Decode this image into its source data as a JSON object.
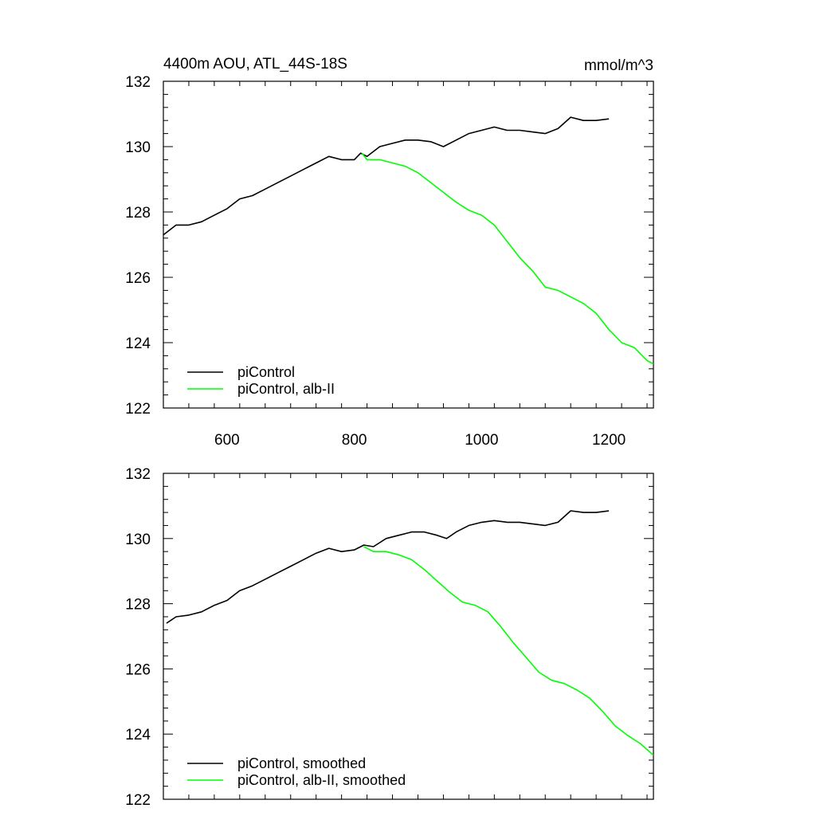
{
  "chart_data": [
    {
      "type": "line",
      "title": "4400m AOU, ATL_44S-18S",
      "units": "mmol/m^3",
      "xlabel": "",
      "ylabel": "",
      "xlim": [
        500,
        1270
      ],
      "ylim": [
        122,
        132
      ],
      "xticks": [
        600,
        800,
        1000,
        1200
      ],
      "xtick_labels": [
        "600",
        "800",
        "1000",
        "1200"
      ],
      "yticks": [
        122,
        124,
        126,
        128,
        130,
        132
      ],
      "ytick_labels": [
        "122",
        "124",
        "126",
        "128",
        "130",
        "132"
      ],
      "legend": "bottom-left",
      "grid": false,
      "series": [
        {
          "name": "piControl",
          "color": "#000000",
          "x": [
            500,
            520,
            540,
            560,
            580,
            600,
            620,
            640,
            660,
            680,
            700,
            720,
            740,
            760,
            780,
            800,
            810,
            820,
            840,
            860,
            880,
            900,
            920,
            940,
            960,
            980,
            1000,
            1020,
            1040,
            1060,
            1080,
            1100,
            1120,
            1140,
            1160,
            1180,
            1200
          ],
          "y": [
            127.3,
            127.6,
            127.6,
            127.7,
            127.9,
            128.1,
            128.4,
            128.5,
            128.7,
            128.9,
            129.1,
            129.3,
            129.5,
            129.7,
            129.6,
            129.6,
            129.8,
            129.7,
            130.0,
            130.1,
            130.2,
            130.2,
            130.15,
            130.0,
            130.2,
            130.4,
            130.5,
            130.6,
            130.5,
            130.5,
            130.45,
            130.4,
            130.55,
            130.9,
            130.8,
            130.8,
            130.85
          ]
        },
        {
          "name": "piControl, alb-II",
          "color": "#00ff00",
          "x": [
            812,
            820,
            840,
            860,
            880,
            900,
            920,
            940,
            960,
            980,
            1000,
            1020,
            1040,
            1060,
            1080,
            1100,
            1120,
            1140,
            1160,
            1180,
            1200,
            1220,
            1240,
            1260,
            1270
          ],
          "y": [
            129.8,
            129.6,
            129.6,
            129.5,
            129.4,
            129.2,
            128.9,
            128.6,
            128.3,
            128.05,
            127.9,
            127.6,
            127.1,
            126.6,
            126.2,
            125.7,
            125.6,
            125.4,
            125.2,
            124.9,
            124.4,
            124.0,
            123.85,
            123.45,
            123.35
          ]
        }
      ]
    },
    {
      "type": "line",
      "title": "",
      "units": "",
      "xlabel": "",
      "ylabel": "",
      "xlim": [
        500,
        1270
      ],
      "ylim": [
        122,
        132
      ],
      "xticks": [
        600,
        800,
        1000,
        1200
      ],
      "xtick_labels": [],
      "yticks": [
        122,
        124,
        126,
        128,
        130,
        132
      ],
      "ytick_labels": [
        "122",
        "124",
        "126",
        "128",
        "130",
        "132"
      ],
      "legend": "bottom-left",
      "grid": false,
      "series": [
        {
          "name": "piControl, smoothed",
          "color": "#000000",
          "x": [
            505,
            520,
            540,
            560,
            580,
            600,
            620,
            640,
            660,
            680,
            700,
            720,
            740,
            760,
            780,
            800,
            815,
            830,
            850,
            870,
            890,
            910,
            930,
            945,
            960,
            980,
            1000,
            1020,
            1040,
            1060,
            1080,
            1100,
            1120,
            1140,
            1160,
            1180,
            1200
          ],
          "y": [
            127.4,
            127.6,
            127.65,
            127.75,
            127.95,
            128.1,
            128.4,
            128.55,
            128.75,
            128.95,
            129.15,
            129.35,
            129.55,
            129.7,
            129.6,
            129.65,
            129.8,
            129.75,
            130.0,
            130.1,
            130.2,
            130.2,
            130.1,
            130.0,
            130.2,
            130.4,
            130.5,
            130.55,
            130.5,
            130.5,
            130.45,
            130.4,
            130.5,
            130.85,
            130.8,
            130.8,
            130.85
          ]
        },
        {
          "name": "piControl, alb-II, smoothed",
          "color": "#00ff00",
          "x": [
            815,
            830,
            850,
            870,
            890,
            910,
            930,
            950,
            970,
            990,
            1010,
            1030,
            1050,
            1070,
            1090,
            1110,
            1130,
            1150,
            1170,
            1190,
            1210,
            1230,
            1250,
            1270
          ],
          "y": [
            129.75,
            129.6,
            129.6,
            129.5,
            129.35,
            129.05,
            128.7,
            128.35,
            128.05,
            127.95,
            127.75,
            127.3,
            126.8,
            126.35,
            125.9,
            125.65,
            125.55,
            125.35,
            125.1,
            124.7,
            124.25,
            123.95,
            123.7,
            123.35
          ]
        }
      ]
    }
  ]
}
